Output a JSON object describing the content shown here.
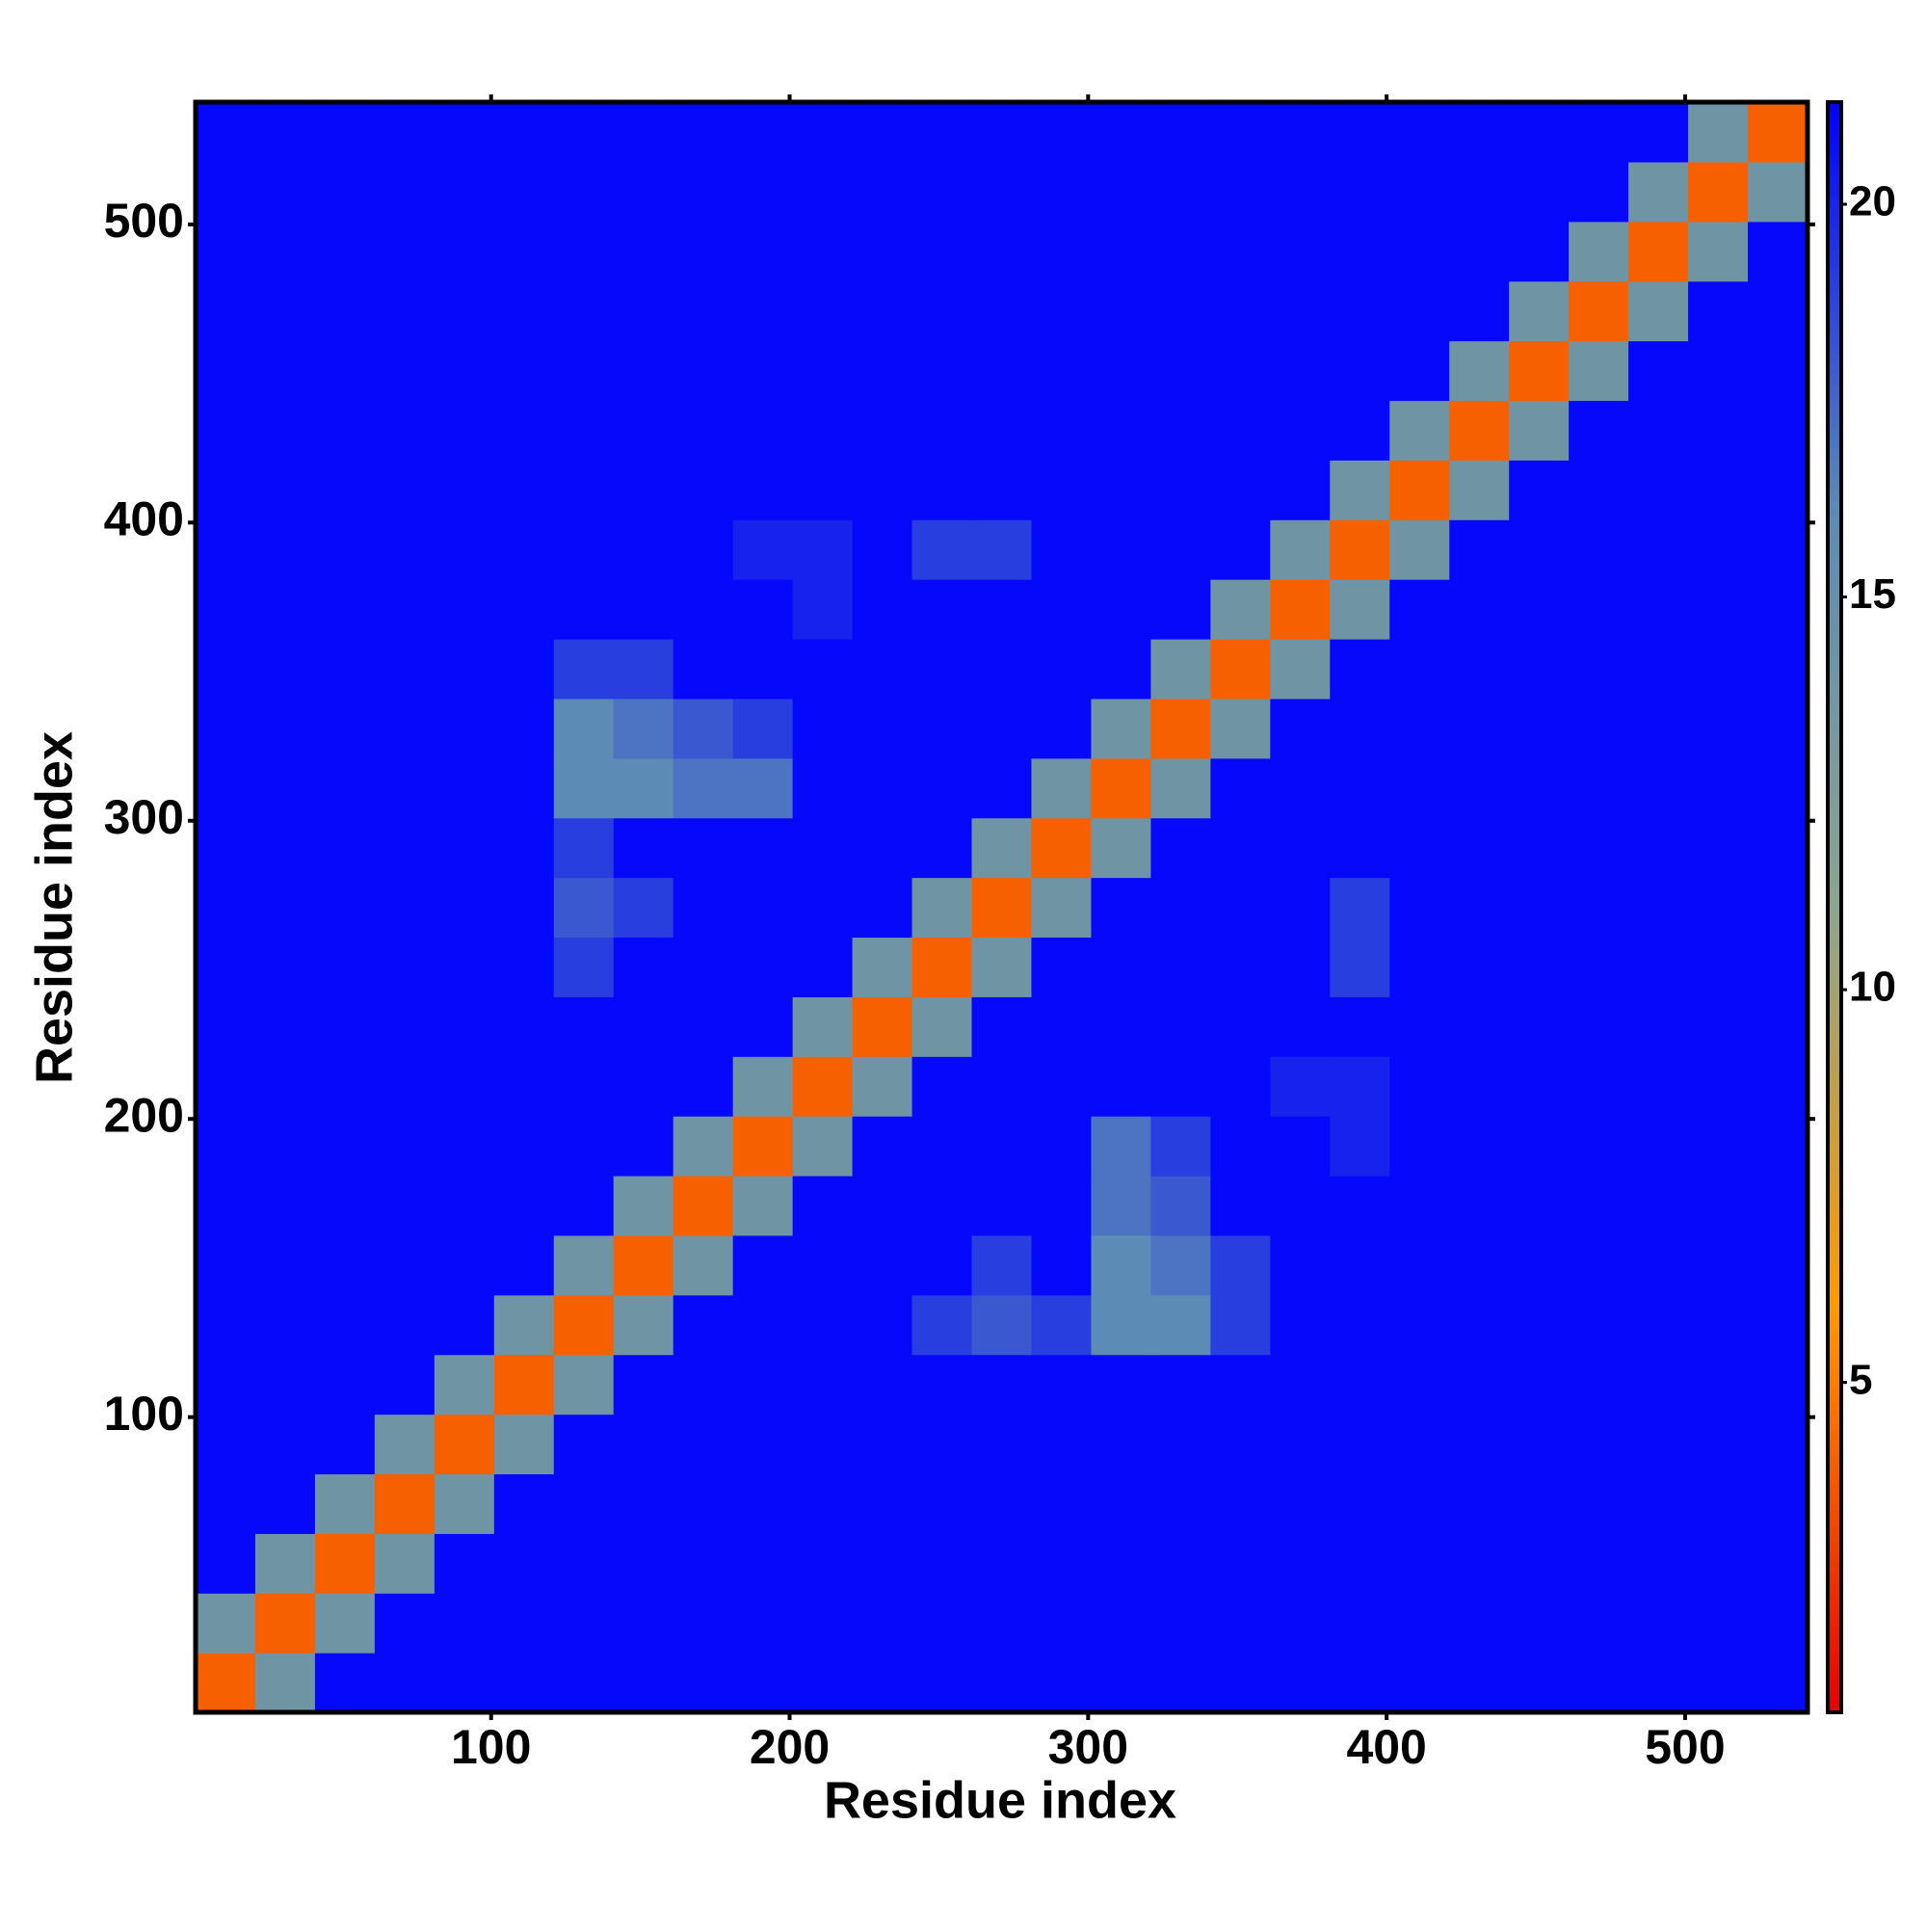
{
  "chart_data": {
    "type": "heatmap",
    "x_label": "Residue index",
    "y_label": "Residue index",
    "xlim": [
      1,
      541
    ],
    "ylim": [
      1,
      541
    ],
    "xticks": [
      100,
      200,
      300,
      400,
      500
    ],
    "yticks": [
      100,
      200,
      300,
      400,
      500
    ],
    "zlim": [
      0.8,
      21.3
    ],
    "zticks": [
      5,
      10,
      15,
      20
    ],
    "colorscale": [
      "#e60000",
      "#ff9900",
      "#8ca58f",
      "#5a8ab6",
      "#0000ff"
    ],
    "values": [
      [
        4,
        14,
        21,
        21,
        21,
        21,
        21,
        21,
        21,
        21,
        21,
        21,
        21,
        21,
        21,
        21,
        21,
        21,
        21,
        21,
        21,
        21,
        21,
        21,
        21,
        21,
        21
      ],
      [
        14,
        4,
        14,
        21,
        21,
        21,
        21,
        21,
        21,
        21,
        21,
        21,
        21,
        21,
        21,
        21,
        21,
        21,
        21,
        21,
        21,
        21,
        21,
        21,
        21,
        21,
        21
      ],
      [
        21,
        14,
        4,
        14,
        21,
        21,
        21,
        21,
        21,
        21,
        21,
        21,
        21,
        21,
        21,
        21,
        21,
        21,
        21,
        21,
        21,
        21,
        21,
        21,
        21,
        21,
        21
      ],
      [
        21,
        21,
        14,
        4,
        14,
        21,
        21,
        21,
        21,
        21,
        21,
        21,
        21,
        21,
        21,
        21,
        21,
        21,
        21,
        21,
        21,
        21,
        21,
        21,
        21,
        21,
        21
      ],
      [
        21,
        21,
        21,
        14,
        4,
        14,
        21,
        21,
        21,
        21,
        21,
        21,
        21,
        21,
        21,
        21,
        21,
        21,
        21,
        21,
        21,
        21,
        21,
        21,
        21,
        21,
        21
      ],
      [
        21,
        21,
        21,
        21,
        14,
        4,
        14,
        21,
        21,
        21,
        21,
        21,
        21,
        21,
        21,
        21,
        21,
        21,
        21,
        21,
        21,
        21,
        21,
        21,
        21,
        21,
        21
      ],
      [
        21,
        21,
        21,
        21,
        21,
        14,
        4,
        14,
        21,
        21,
        21,
        21,
        19,
        18,
        19,
        16,
        16,
        19,
        21,
        21,
        21,
        21,
        21,
        21,
        21,
        21,
        21
      ],
      [
        21,
        21,
        21,
        21,
        21,
        21,
        14,
        4,
        14,
        21,
        21,
        21,
        21,
        19,
        21,
        16,
        17,
        19,
        21,
        21,
        21,
        21,
        21,
        21,
        21,
        21,
        21
      ],
      [
        21,
        21,
        21,
        21,
        21,
        21,
        21,
        14,
        4,
        14,
        21,
        21,
        21,
        21,
        21,
        17,
        18,
        21,
        21,
        21,
        21,
        21,
        21,
        21,
        21,
        21,
        21
      ],
      [
        21,
        21,
        21,
        21,
        21,
        21,
        21,
        21,
        14,
        4,
        14,
        21,
        21,
        21,
        21,
        17,
        19,
        21,
        21,
        20,
        21,
        21,
        21,
        21,
        21,
        21,
        21
      ],
      [
        21,
        21,
        21,
        21,
        21,
        21,
        21,
        21,
        21,
        14,
        4,
        14,
        21,
        21,
        21,
        21,
        21,
        21,
        20,
        20,
        21,
        21,
        21,
        21,
        21,
        21,
        21
      ],
      [
        21,
        21,
        21,
        21,
        21,
        21,
        21,
        21,
        21,
        21,
        14,
        4,
        14,
        21,
        21,
        21,
        21,
        21,
        21,
        21,
        21,
        21,
        21,
        21,
        21,
        21,
        21
      ],
      [
        21,
        21,
        21,
        21,
        21,
        21,
        19,
        21,
        21,
        21,
        21,
        14,
        4,
        14,
        21,
        21,
        21,
        21,
        21,
        19,
        21,
        21,
        21,
        21,
        21,
        21,
        21
      ],
      [
        21,
        21,
        21,
        21,
        21,
        21,
        18,
        19,
        21,
        21,
        21,
        21,
        14,
        4,
        14,
        21,
        21,
        21,
        21,
        19,
        21,
        21,
        21,
        21,
        21,
        21,
        21
      ],
      [
        21,
        21,
        21,
        21,
        21,
        21,
        19,
        21,
        21,
        21,
        21,
        21,
        21,
        14,
        4,
        14,
        21,
        21,
        21,
        21,
        21,
        21,
        21,
        21,
        21,
        21,
        21
      ],
      [
        21,
        21,
        21,
        21,
        21,
        21,
        16,
        16,
        17,
        17,
        21,
        21,
        21,
        21,
        14,
        4,
        14,
        21,
        21,
        21,
        21,
        21,
        21,
        21,
        21,
        21,
        21
      ],
      [
        21,
        21,
        21,
        21,
        21,
        21,
        16,
        17,
        18,
        19,
        21,
        21,
        21,
        21,
        21,
        14,
        4,
        14,
        21,
        21,
        21,
        21,
        21,
        21,
        21,
        21,
        21
      ],
      [
        21,
        21,
        21,
        21,
        21,
        21,
        19,
        19,
        21,
        21,
        21,
        21,
        21,
        21,
        21,
        21,
        14,
        4,
        14,
        21,
        21,
        21,
        21,
        21,
        21,
        21,
        21
      ],
      [
        21,
        21,
        21,
        21,
        21,
        21,
        21,
        21,
        21,
        21,
        20,
        21,
        21,
        21,
        21,
        21,
        21,
        14,
        4,
        14,
        21,
        21,
        21,
        21,
        21,
        21,
        21
      ],
      [
        21,
        21,
        21,
        21,
        21,
        21,
        21,
        21,
        21,
        20,
        20,
        21,
        19,
        19,
        21,
        21,
        21,
        21,
        14,
        4,
        14,
        21,
        21,
        21,
        21,
        21,
        21
      ],
      [
        21,
        21,
        21,
        21,
        21,
        21,
        21,
        21,
        21,
        21,
        21,
        21,
        21,
        21,
        21,
        21,
        21,
        21,
        21,
        14,
        4,
        14,
        21,
        21,
        21,
        21,
        21
      ],
      [
        21,
        21,
        21,
        21,
        21,
        21,
        21,
        21,
        21,
        21,
        21,
        21,
        21,
        21,
        21,
        21,
        21,
        21,
        21,
        21,
        14,
        4,
        14,
        21,
        21,
        21,
        21
      ],
      [
        21,
        21,
        21,
        21,
        21,
        21,
        21,
        21,
        21,
        21,
        21,
        21,
        21,
        21,
        21,
        21,
        21,
        21,
        21,
        21,
        21,
        14,
        4,
        14,
        21,
        21,
        21
      ],
      [
        21,
        21,
        21,
        21,
        21,
        21,
        21,
        21,
        21,
        21,
        21,
        21,
        21,
        21,
        21,
        21,
        21,
        21,
        21,
        21,
        21,
        21,
        14,
        4,
        14,
        21,
        21
      ],
      [
        21,
        21,
        21,
        21,
        21,
        21,
        21,
        21,
        21,
        21,
        21,
        21,
        21,
        21,
        21,
        21,
        21,
        21,
        21,
        21,
        21,
        21,
        21,
        14,
        4,
        14,
        21
      ],
      [
        21,
        21,
        21,
        21,
        21,
        21,
        21,
        21,
        21,
        21,
        21,
        21,
        21,
        21,
        21,
        21,
        21,
        21,
        21,
        21,
        21,
        21,
        21,
        21,
        14,
        4,
        14
      ],
      [
        21,
        21,
        21,
        21,
        21,
        21,
        21,
        21,
        21,
        21,
        21,
        21,
        21,
        21,
        21,
        21,
        21,
        21,
        21,
        21,
        21,
        21,
        21,
        21,
        21,
        14,
        4
      ]
    ]
  }
}
